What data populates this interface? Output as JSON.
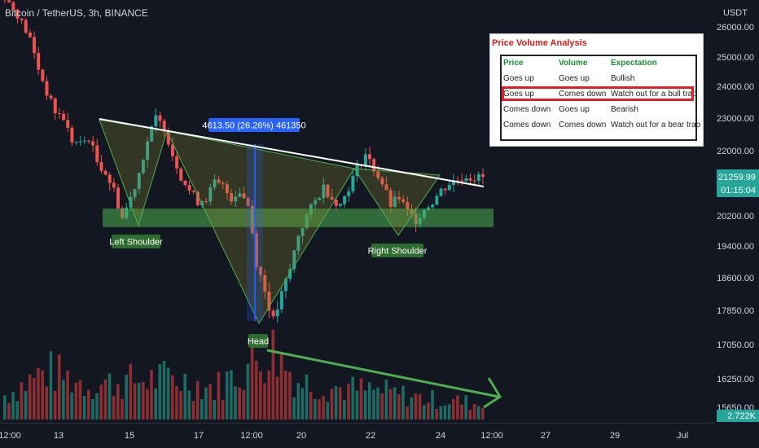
{
  "header": {
    "symbol_title": "Bitcoin / TetherUS, 3h, BINANCE"
  },
  "y_axis": {
    "unit": "USDT"
  },
  "price_labels": {
    "current": "21259.99",
    "countdown": "01:15:04",
    "volume": "2.722K"
  },
  "annotations": {
    "measure": "4613.50 (26.26%) 461350",
    "left_shoulder": "Left Shoulder",
    "head": "Head",
    "right_shoulder": "Right Shoulder"
  },
  "pv_table": {
    "title": "Price Volume Analysis",
    "headers": [
      "Price",
      "Volume",
      "Expectation"
    ],
    "rows": [
      [
        "Goes up",
        "Goes up",
        "Bullish"
      ],
      [
        "Goes up",
        "Comes down",
        "Watch out for a bull trap"
      ],
      [
        "Comes down",
        "Goes up",
        "Bearish"
      ],
      [
        "Comes down",
        "Comes down",
        "Watch out for a bear trap"
      ]
    ],
    "highlighted_row": 1
  },
  "colors": {
    "background": "#131722",
    "up": "#26a69a",
    "down": "#ef5350",
    "vol_up": "#1e6b63",
    "vol_down": "#8c2e32",
    "zone": "#4caf50",
    "trend": "#ffffff",
    "arrow": "#4caf50",
    "measure": "#2962ff"
  },
  "chart_data": {
    "type": "candlestick",
    "title": "Bitcoin / TetherUS, 3h, BINANCE",
    "ylabel": "USDT",
    "y_ticks": [
      26000,
      25000,
      24000,
      23000,
      22000,
      20200,
      19400,
      18600,
      17850,
      17050,
      16250,
      15650
    ],
    "x_ticks": [
      "12:00",
      "13",
      "15",
      "17",
      "12:00",
      "20",
      "22",
      "24",
      "12:00",
      "27",
      "29",
      "Jul"
    ],
    "current_price": 21259.99,
    "neckline_zone": [
      19900,
      20400
    ],
    "measured_move": {
      "low": 17600,
      "high": 22200,
      "change": 4613.5,
      "change_pct": 26.26
    },
    "pattern": "inverse head and shoulders",
    "price_path": [
      [
        0,
        27000
      ],
      [
        3,
        26400
      ],
      [
        6,
        25600
      ],
      [
        8,
        24600
      ],
      [
        10,
        23800
      ],
      [
        12,
        23200
      ],
      [
        14,
        23000
      ],
      [
        16,
        22300
      ],
      [
        18,
        22200
      ],
      [
        20,
        22400
      ],
      [
        22,
        21700
      ],
      [
        24,
        21400
      ],
      [
        26,
        20900
      ],
      [
        28,
        20150
      ],
      [
        30,
        20700
      ],
      [
        32,
        21400
      ],
      [
        34,
        22300
      ],
      [
        36,
        23000
      ],
      [
        38,
        22700
      ],
      [
        40,
        21900
      ],
      [
        42,
        21300
      ],
      [
        44,
        20900
      ],
      [
        46,
        20600
      ],
      [
        48,
        20700
      ],
      [
        50,
        21100
      ],
      [
        52,
        21000
      ],
      [
        54,
        20700
      ],
      [
        56,
        20900
      ],
      [
        58,
        20500
      ],
      [
        60,
        19000
      ],
      [
        62,
        18300
      ],
      [
        64,
        17600
      ],
      [
        66,
        18200
      ],
      [
        68,
        18800
      ],
      [
        70,
        19700
      ],
      [
        72,
        20200
      ],
      [
        74,
        20600
      ],
      [
        76,
        21000
      ],
      [
        78,
        20700
      ],
      [
        80,
        20500
      ],
      [
        82,
        21000
      ],
      [
        84,
        21500
      ],
      [
        86,
        21900
      ],
      [
        88,
        21500
      ],
      [
        90,
        21100
      ],
      [
        92,
        20500
      ],
      [
        94,
        20700
      ],
      [
        96,
        20300
      ],
      [
        98,
        20100
      ],
      [
        100,
        20400
      ],
      [
        102,
        20600
      ],
      [
        104,
        20900
      ],
      [
        106,
        21100
      ],
      [
        108,
        21200
      ],
      [
        110,
        21300
      ],
      [
        112,
        21250
      ],
      [
        114,
        21259.99
      ]
    ],
    "volume_path": [
      [
        0,
        0.35
      ],
      [
        10,
        0.7
      ],
      [
        20,
        0.5
      ],
      [
        30,
        0.55
      ],
      [
        40,
        0.6
      ],
      [
        50,
        0.45
      ],
      [
        60,
        0.85
      ],
      [
        64,
        1.0
      ],
      [
        70,
        0.55
      ],
      [
        80,
        0.45
      ],
      [
        90,
        0.4
      ],
      [
        100,
        0.3
      ],
      [
        110,
        0.25
      ],
      [
        114,
        0.2
      ]
    ]
  }
}
